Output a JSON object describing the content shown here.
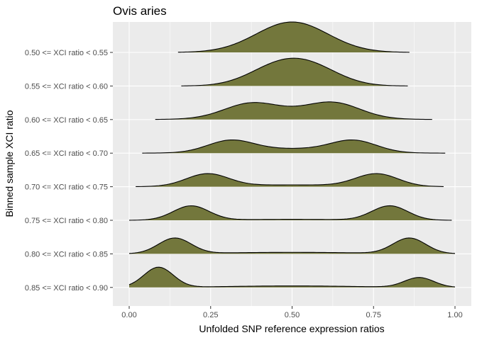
{
  "chart_data": {
    "type": "ridgeline",
    "title": "Ovis aries",
    "xlabel": "Unfolded SNP reference expression ratios",
    "ylabel": "Binned sample XCI ratio",
    "xlim": [
      0,
      1
    ],
    "x_ticks": [
      {
        "value": 0,
        "label": "0.00"
      },
      {
        "value": 0.25,
        "label": "0.25"
      },
      {
        "value": 0.5,
        "label": "0.50"
      },
      {
        "value": 0.75,
        "label": "0.75"
      },
      {
        "value": 1,
        "label": "1.00"
      }
    ],
    "grid": true,
    "fill_color": "#73773c",
    "panel_color": "#ebebeb",
    "grid_color": "#ffffff",
    "series": [
      {
        "label": "0.50 <= XCI ratio < 0.55",
        "xmin": 0.15,
        "xmax": 0.86,
        "components": [
          [
            0.5,
            0.11,
            1.0
          ]
        ]
      },
      {
        "label": "0.55 <= XCI ratio < 0.60",
        "xmin": 0.16,
        "xmax": 0.855,
        "components": [
          [
            0.45,
            0.09,
            0.55
          ],
          [
            0.56,
            0.09,
            0.55
          ]
        ]
      },
      {
        "label": "0.60 <= XCI ratio < 0.65",
        "xmin": 0.08,
        "xmax": 0.93,
        "components": [
          [
            0.37,
            0.08,
            0.4
          ],
          [
            0.63,
            0.08,
            0.42
          ],
          [
            0.5,
            0.15,
            0.22
          ]
        ]
      },
      {
        "label": "0.65 <= XCI ratio < 0.70",
        "xmin": 0.04,
        "xmax": 0.97,
        "components": [
          [
            0.31,
            0.07,
            0.37
          ],
          [
            0.69,
            0.07,
            0.37
          ],
          [
            0.5,
            0.15,
            0.14
          ]
        ]
      },
      {
        "label": "0.70 <= XCI ratio < 0.75",
        "xmin": 0.02,
        "xmax": 0.965,
        "components": [
          [
            0.24,
            0.065,
            0.41
          ],
          [
            0.76,
            0.065,
            0.41
          ],
          [
            0.5,
            0.18,
            0.06
          ]
        ]
      },
      {
        "label": "0.75 <= XCI ratio < 0.80",
        "xmin": 0.0,
        "xmax": 0.99,
        "components": [
          [
            0.19,
            0.055,
            0.47
          ],
          [
            0.8,
            0.055,
            0.47
          ],
          [
            0.5,
            0.18,
            0.03
          ]
        ]
      },
      {
        "label": "0.80 <= XCI ratio < 0.85",
        "xmin": 0.0,
        "xmax": 1.0,
        "components": [
          [
            0.14,
            0.05,
            0.51
          ],
          [
            0.86,
            0.05,
            0.51
          ],
          [
            0.5,
            0.22,
            0.05
          ]
        ]
      },
      {
        "label": "0.85 <= XCI ratio < 0.90",
        "xmin": 0.0,
        "xmax": 1.0,
        "components": [
          [
            0.09,
            0.045,
            0.66
          ],
          [
            0.89,
            0.045,
            0.32
          ],
          [
            0.5,
            0.2,
            0.05
          ]
        ]
      }
    ]
  }
}
